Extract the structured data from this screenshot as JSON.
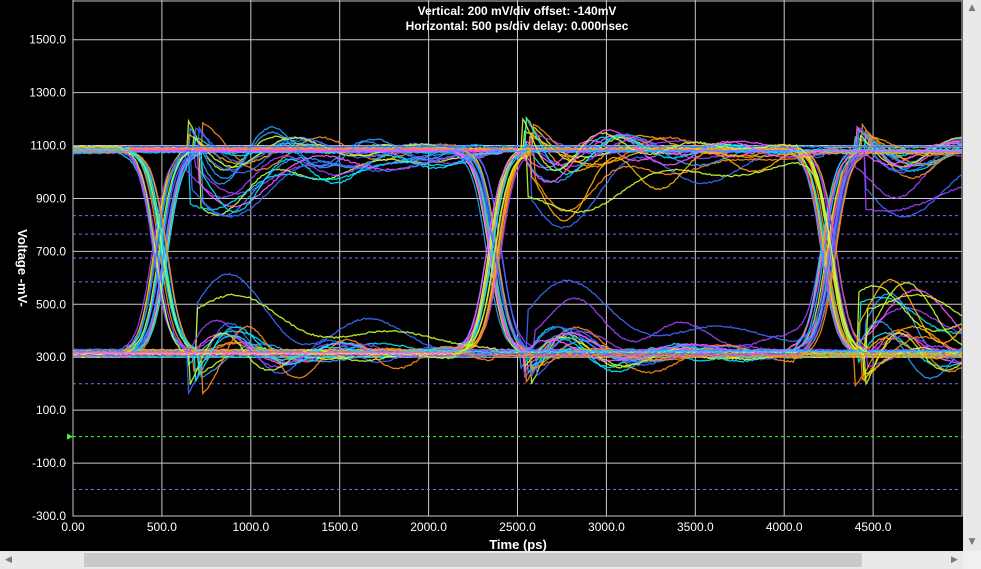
{
  "header": {
    "vertical_line": "Vertical: 200 mV/div  offset: -140mV",
    "horizontal_line": "Horizontal: 500 ps/div  delay: 0.000nsec"
  },
  "chart_data": {
    "type": "line",
    "subtype": "eye-diagram",
    "xlabel": "Time  (ps)",
    "ylabel": "Voltage  -mV-",
    "xlim": [
      0,
      5000
    ],
    "ylim": [
      -300,
      1650
    ],
    "x_ticks": [
      "0.00",
      "500.0",
      "1000.0",
      "1500.0",
      "2000.0",
      "2500.0",
      "3000.0",
      "3500.0",
      "4000.0",
      "4500.0"
    ],
    "y_ticks": [
      "1500.0",
      "1300.0",
      "1100.0",
      "900.0",
      "700.0",
      "500.0",
      "300.0",
      "100.0",
      "-100.0",
      "-300.0"
    ],
    "y_tick_values": [
      1500,
      1300,
      1100,
      900,
      700,
      500,
      300,
      100,
      -100,
      -300
    ],
    "x_tick_values": [
      0,
      500,
      1000,
      1500,
      2000,
      2500,
      3000,
      3500,
      4000,
      4500
    ],
    "grid": true,
    "eye": {
      "high_level_mv": 1085,
      "low_level_mv": 315,
      "crossing_level_mv": 700,
      "crossing_times_ps": [
        490,
        2370,
        4250
      ],
      "unit_interval_ps": 1880
    },
    "reference_lines_mv": [
      835,
      765,
      675,
      585,
      200,
      -200
    ],
    "ground_marker_mv": 0,
    "trace_colors": [
      "#3b6cff",
      "#a040ff",
      "#ff8a1e",
      "#00e5ff",
      "#c8ff30",
      "#ff50ff",
      "#2a9cff",
      "#ffb000"
    ]
  },
  "colors": {
    "background": "#000000",
    "grid": "#c8c8c8",
    "reference_line": "#7a6cff",
    "ground_line": "#33ff33",
    "scrollbar": "#e9e9e9"
  },
  "icons": {
    "scroll_up": "scroll-up-arrow-icon",
    "scroll_down": "scroll-down-arrow-icon",
    "scroll_left": "scroll-left-arrow-icon",
    "scroll_right": "scroll-right-arrow-icon"
  }
}
